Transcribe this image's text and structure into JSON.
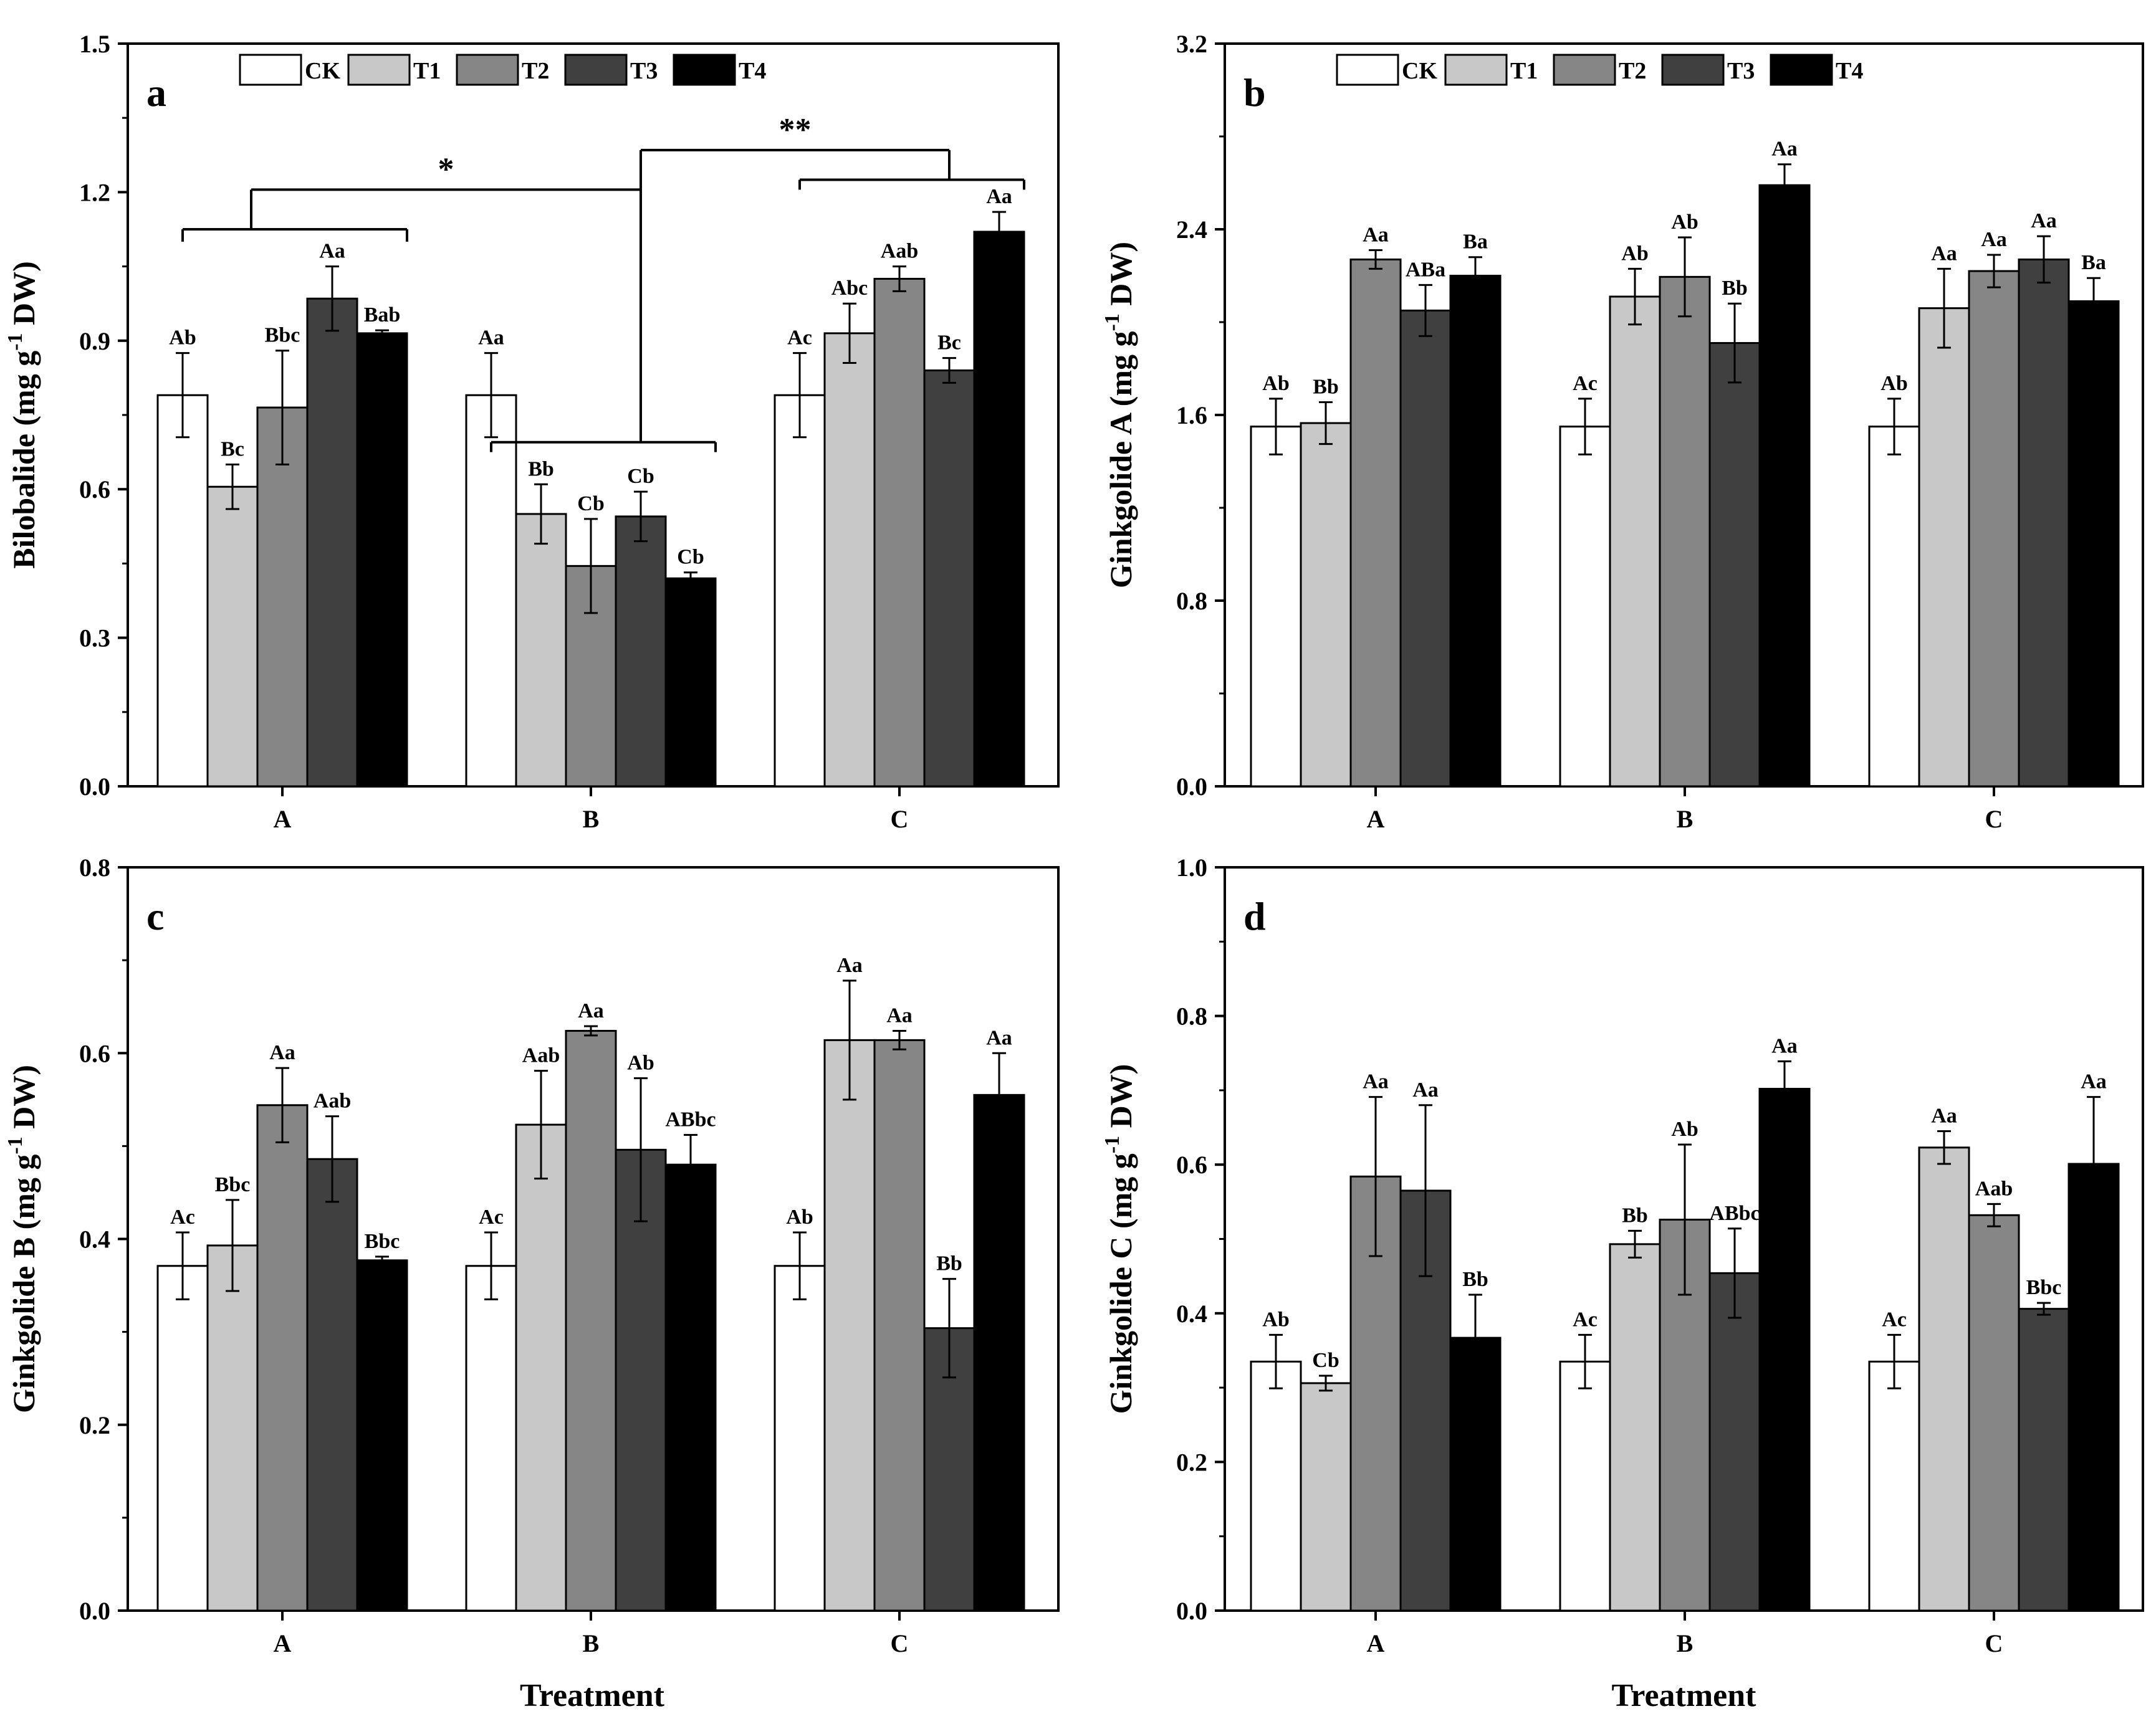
{
  "chart_data": [
    {
      "type": "bar",
      "panel_label": "a",
      "ylabel": "Bilobalide (mg g-1 DW)",
      "ylabel_main": "Bilobalide (mg g",
      "ylabel_sup": "-1",
      "ylabel_end": " DW)",
      "xlabel": "",
      "ylim": [
        0,
        1.5
      ],
      "yticks": [
        "0.0",
        "0.3",
        "0.6",
        "0.9",
        "1.2",
        "1.5"
      ],
      "categories": [
        "A",
        "B",
        "C"
      ],
      "legend": [
        "CK",
        "T1",
        "T2",
        "T3",
        "T4"
      ],
      "colors": [
        "#ffffff",
        "#c8c8c8",
        "#868686",
        "#404040",
        "#000000"
      ],
      "series": [
        {
          "name": "CK",
          "values": [
            0.79,
            0.79,
            0.79
          ],
          "errors": [
            0.085,
            0.085,
            0.085
          ],
          "labels": [
            "Ab",
            "Aa",
            "Ac"
          ]
        },
        {
          "name": "T1",
          "values": [
            0.605,
            0.55,
            0.915
          ],
          "errors": [
            0.045,
            0.06,
            0.06
          ],
          "labels": [
            "Bc",
            "Bb",
            "Abc"
          ]
        },
        {
          "name": "T2",
          "values": [
            0.765,
            0.445,
            1.025
          ],
          "errors": [
            0.115,
            0.095,
            0.025
          ],
          "labels": [
            "Bbc",
            "Cb",
            "Aab"
          ]
        },
        {
          "name": "T3",
          "values": [
            0.985,
            0.545,
            0.84
          ],
          "errors": [
            0.065,
            0.05,
            0.025
          ],
          "labels": [
            "Aa",
            "Cb",
            "Bc"
          ]
        },
        {
          "name": "T4",
          "values": [
            0.915,
            0.42,
            1.12
          ],
          "errors": [
            0.006,
            0.012,
            0.04
          ],
          "labels": [
            "Bab",
            "Cb",
            "Aa"
          ]
        }
      ],
      "annotations": [
        "*",
        "**"
      ]
    },
    {
      "type": "bar",
      "panel_label": "b",
      "ylabel": "Ginkgolide A (mg g-1 DW)",
      "ylabel_main": "Ginkgolide A (mg g",
      "ylabel_sup": "-1",
      "ylabel_end": " DW)",
      "xlabel": "",
      "ylim": [
        0,
        3.2
      ],
      "yticks": [
        "0.0",
        "0.8",
        "1.6",
        "2.4",
        "3.2"
      ],
      "categories": [
        "A",
        "B",
        "C"
      ],
      "legend": [
        "CK",
        "T1",
        "T2",
        "T3",
        "T4"
      ],
      "colors": [
        "#ffffff",
        "#c8c8c8",
        "#868686",
        "#404040",
        "#000000"
      ],
      "series": [
        {
          "name": "CK",
          "values": [
            1.55,
            1.55,
            1.55
          ],
          "errors": [
            0.12,
            0.12,
            0.12
          ],
          "labels": [
            "Ab",
            "Ac",
            "Ab"
          ]
        },
        {
          "name": "T1",
          "values": [
            1.565,
            2.11,
            2.06
          ],
          "errors": [
            0.09,
            0.12,
            0.17
          ],
          "labels": [
            "Bb",
            "Ab",
            "Aa"
          ]
        },
        {
          "name": "T2",
          "values": [
            2.27,
            2.195,
            2.22
          ],
          "errors": [
            0.04,
            0.17,
            0.07
          ],
          "labels": [
            "Aa",
            "Ab",
            "Aa"
          ]
        },
        {
          "name": "T3",
          "values": [
            2.05,
            1.91,
            2.27
          ],
          "errors": [
            0.11,
            0.17,
            0.1
          ],
          "labels": [
            "ABa",
            "Bb",
            "Aa"
          ]
        },
        {
          "name": "T4",
          "values": [
            2.2,
            2.59,
            2.09
          ],
          "errors": [
            0.08,
            0.09,
            0.1
          ],
          "labels": [
            "Ba",
            "Aa",
            "Ba"
          ]
        }
      ]
    },
    {
      "type": "bar",
      "panel_label": "c",
      "ylabel": "Ginkgolide B (mg g-1 DW)",
      "ylabel_main": "Ginkgolide B (mg g",
      "ylabel_sup": "-1",
      "ylabel_end": " DW)",
      "xlabel": "",
      "ylim": [
        0,
        0.8
      ],
      "yticks": [
        "0.0",
        "0.2",
        "0.4",
        "0.6",
        "0.8"
      ],
      "categories": [
        "A",
        "B",
        "C"
      ],
      "colors": [
        "#ffffff",
        "#c8c8c8",
        "#868686",
        "#404040",
        "#000000"
      ],
      "series": [
        {
          "name": "CK",
          "values": [
            0.371,
            0.371,
            0.371
          ],
          "errors": [
            0.036,
            0.036,
            0.036
          ],
          "labels": [
            "Ac",
            "Ac",
            "Ab"
          ]
        },
        {
          "name": "T1",
          "values": [
            0.393,
            0.523,
            0.614
          ],
          "errors": [
            0.049,
            0.058,
            0.064
          ],
          "labels": [
            "Bbc",
            "Aab",
            "Aa"
          ]
        },
        {
          "name": "T2",
          "values": [
            0.544,
            0.624,
            0.614
          ],
          "errors": [
            0.04,
            0.005,
            0.01
          ],
          "labels": [
            "Aa",
            "Aa",
            "Aa"
          ]
        },
        {
          "name": "T3",
          "values": [
            0.486,
            0.496,
            0.304
          ],
          "errors": [
            0.046,
            0.077,
            0.053
          ],
          "labels": [
            "Aab",
            "Ab",
            "Bb"
          ]
        },
        {
          "name": "T4",
          "values": [
            0.377,
            0.48,
            0.555
          ],
          "errors": [
            0.004,
            0.032,
            0.045
          ],
          "labels": [
            "Bbc",
            "ABbc",
            "Aa"
          ]
        }
      ]
    },
    {
      "type": "bar",
      "panel_label": "d",
      "ylabel": "Ginkgolide C (mg g-1 DW)",
      "ylabel_main": "Ginkgolide C (mg g",
      "ylabel_sup": "-1",
      "ylabel_end": " DW)",
      "xlabel": "Treatment",
      "ylim": [
        0,
        1.0
      ],
      "yticks": [
        "0.0",
        "0.2",
        "0.4",
        "0.6",
        "0.8",
        "1.0"
      ],
      "categories": [
        "A",
        "B",
        "C"
      ],
      "colors": [
        "#ffffff",
        "#c8c8c8",
        "#868686",
        "#404040",
        "#000000"
      ],
      "series": [
        {
          "name": "CK",
          "values": [
            0.335,
            0.335,
            0.335
          ],
          "errors": [
            0.036,
            0.036,
            0.036
          ],
          "labels": [
            "Ab",
            "Ac",
            "Ac"
          ]
        },
        {
          "name": "T1",
          "values": [
            0.306,
            0.493,
            0.623
          ],
          "errors": [
            0.01,
            0.018,
            0.022
          ],
          "labels": [
            "Cb",
            "Bb",
            "Aa"
          ]
        },
        {
          "name": "T2",
          "values": [
            0.584,
            0.526,
            0.532
          ],
          "errors": [
            0.107,
            0.101,
            0.015
          ],
          "labels": [
            "Aa",
            "Ab",
            "Aab"
          ]
        },
        {
          "name": "T3",
          "values": [
            0.565,
            0.454,
            0.406
          ],
          "errors": [
            0.115,
            0.06,
            0.008
          ],
          "labels": [
            "Aa",
            "ABbc",
            "Bbc"
          ]
        },
        {
          "name": "T4",
          "values": [
            0.367,
            0.702,
            0.601
          ],
          "errors": [
            0.058,
            0.037,
            0.09
          ],
          "labels": [
            "Bb",
            "Aa",
            "Aa"
          ]
        }
      ]
    }
  ],
  "bottom_xlabel_left": "Treatment"
}
